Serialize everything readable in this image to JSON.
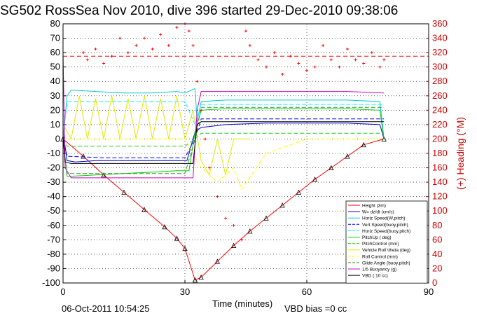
{
  "chart_data": {
    "type": "line",
    "title": "SG502 RossSea Nov 2010, dive 396 started 29-Dec-2010 09:38:06",
    "xlabel": "Time (minutes)",
    "ylabel_right": "(+) Heading (°M)",
    "xlim": [
      0,
      90
    ],
    "ylim": [
      -100,
      80
    ],
    "ylim_right": [
      0,
      360
    ],
    "x_ticks": [
      0,
      30,
      60,
      90
    ],
    "y_ticks": [
      -100,
      -90,
      -80,
      -70,
      -60,
      -50,
      -40,
      -30,
      -20,
      -10,
      0,
      10,
      20,
      30,
      40,
      50,
      60,
      70,
      80
    ],
    "y_right_ticks": [
      0,
      20,
      40,
      60,
      80,
      100,
      120,
      140,
      160,
      180,
      200,
      220,
      240,
      260,
      280,
      300,
      320,
      340,
      360
    ],
    "grid": "dotted",
    "legend_position": "bottom-right",
    "footer_date": "06-Oct-2011 10:54:25",
    "footer_note": "VBD bias =0 cc",
    "colors": {
      "height": "#ff0000",
      "w": "#0000cc",
      "horiz_speed": "#00cccc",
      "vert_speed_buoy": "#0000ff",
      "horiz_speed_buoy": "#00ffff",
      "pitch_up": "#00cc00",
      "pitch_control": "#22cc22",
      "roll": "#e6e600",
      "roll_control": "#ffff00",
      "glide_angle": "#339933",
      "buoyancy": "#cc00cc",
      "vbd": "#000000",
      "heading": "#ff0000"
    },
    "series": [
      {
        "name": "Height (3m)",
        "key": "height",
        "style": "solid-markers",
        "x": [
          0,
          5,
          10,
          15,
          20,
          25,
          28,
          30,
          32.5,
          34,
          38,
          42,
          46,
          50,
          54,
          58,
          62,
          66,
          70,
          74,
          79
        ],
        "y": [
          0,
          -12,
          -25,
          -37,
          -49,
          -61,
          -69,
          -76,
          -98,
          -96,
          -85,
          -74,
          -64,
          -55,
          -46,
          -37,
          -28,
          -20,
          -12,
          -4,
          0
        ]
      },
      {
        "name": "W= dz/dt (cm/s)",
        "key": "w",
        "style": "solid",
        "x": [
          0,
          0.5,
          1,
          3,
          8,
          15,
          22,
          29,
          30.5,
          32.5,
          34,
          40,
          50,
          60,
          70,
          78,
          79
        ],
        "y": [
          5,
          -5,
          -15,
          -16,
          -15,
          -15,
          -15,
          -15,
          -15,
          5,
          8,
          10,
          11,
          11,
          11,
          10,
          0
        ]
      },
      {
        "name": "Horiz Speed(W,pitch)",
        "key": "horiz_speed",
        "style": "solid",
        "x": [
          0,
          1,
          2,
          8,
          15,
          22,
          28,
          30,
          32.5,
          33,
          34,
          40,
          50,
          60,
          70,
          78,
          79
        ],
        "y": [
          0,
          30,
          34,
          33,
          32,
          32,
          33,
          32,
          35,
          12,
          26,
          27,
          27,
          27,
          27,
          26,
          0
        ]
      },
      {
        "name": "Vert Speed(buoy,pitch)",
        "key": "vert_speed_buoy",
        "style": "dashed",
        "x": [
          0,
          1,
          10,
          20,
          30,
          32.5,
          34,
          50,
          70,
          79
        ],
        "y": [
          0,
          -12,
          -13,
          -13,
          -13,
          0,
          14,
          14,
          14,
          14
        ]
      },
      {
        "name": "Horiz Speed(buoy,pitch)",
        "key": "horiz_speed_buoy",
        "style": "dashed",
        "x": [
          0,
          1,
          10,
          20,
          30,
          32.5,
          34,
          50,
          70,
          79
        ],
        "y": [
          0,
          26,
          26,
          26,
          26,
          10,
          24,
          24,
          24,
          24
        ]
      },
      {
        "name": "PitchUp ( deg)",
        "key": "pitch_up",
        "style": "solid",
        "x": [
          0,
          1,
          8,
          15,
          22,
          28,
          31,
          32.5,
          34,
          40,
          50,
          60,
          70,
          78,
          79
        ],
        "y": [
          0,
          -26,
          -25,
          -24,
          -23,
          -22,
          -22,
          5,
          20,
          21,
          21,
          21,
          21,
          20,
          0
        ]
      },
      {
        "name": "PitchControl (mm)",
        "key": "pitch_control",
        "style": "dashed",
        "x": [
          0,
          1,
          10,
          20,
          30,
          32.5,
          34,
          50,
          70,
          79
        ],
        "y": [
          0,
          -5,
          -5,
          -5,
          -5,
          0,
          4,
          4,
          4,
          4
        ]
      },
      {
        "name": "Vehicle Roll \\theta (deg)",
        "key": "roll",
        "style": "solid",
        "x": [
          0,
          2,
          4,
          6,
          8,
          10,
          12,
          14,
          16,
          18,
          20,
          22,
          24,
          26,
          28,
          30,
          32,
          34,
          36,
          38,
          40,
          42,
          44,
          46
        ],
        "y": [
          10,
          0,
          30,
          0,
          28,
          0,
          30,
          0,
          28,
          0,
          30,
          0,
          28,
          0,
          30,
          0,
          20,
          -15,
          -25,
          0,
          -25,
          0,
          0,
          0
        ]
      },
      {
        "name": "Roll Control (mm)",
        "key": "roll_control",
        "style": "dashed",
        "x": [
          0,
          5,
          10,
          20,
          30,
          34,
          38,
          42,
          44,
          50,
          60,
          70,
          79
        ],
        "y": [
          0,
          0,
          0,
          0,
          0,
          -20,
          -30,
          -20,
          -35,
          -10,
          0,
          0,
          0
        ]
      },
      {
        "name": "Glide Angle (buoy,pitch)",
        "key": "glide_angle",
        "style": "dashed",
        "x": [
          0,
          1,
          10,
          20,
          30,
          32.5,
          34,
          50,
          70,
          79
        ],
        "y": [
          0,
          -24,
          -24,
          -24,
          -24,
          0,
          22,
          22,
          22,
          22
        ]
      },
      {
        "name": "1/5 Buoyancy (g)",
        "key": "buoyancy",
        "style": "solid",
        "x": [
          0,
          0.5,
          2,
          10,
          20,
          30,
          32,
          33,
          34,
          40,
          50,
          60,
          70,
          79
        ],
        "y": [
          60,
          -20,
          -27,
          -27,
          -27,
          -27,
          -27,
          20,
          33,
          33,
          33,
          33,
          33,
          32
        ]
      },
      {
        "name": "VBD ( 10 cc)",
        "key": "vbd",
        "style": "solid",
        "x": [
          0,
          0.5,
          2,
          10,
          20,
          30,
          32,
          33,
          34,
          40,
          50,
          60,
          70,
          79
        ],
        "y": [
          2,
          -16,
          -17,
          -17,
          -17,
          -17,
          -17,
          10,
          12,
          12,
          12,
          12,
          12,
          12
        ]
      },
      {
        "name": "Heading",
        "key": "heading",
        "style": "markers",
        "axis": "right",
        "x": [
          5,
          6,
          8,
          10,
          12,
          14,
          16,
          18,
          20,
          22,
          24,
          26,
          28,
          30,
          31,
          32,
          33,
          34,
          35,
          36,
          38,
          40,
          42,
          44,
          45,
          46,
          48,
          50,
          52,
          54,
          56,
          58,
          60,
          62,
          64,
          66,
          68,
          70,
          72,
          74,
          76,
          78,
          79
        ],
        "y": [
          320,
          310,
          325,
          305,
          315,
          340,
          320,
          330,
          340,
          325,
          345,
          330,
          355,
          360,
          350,
          330,
          280,
          240,
          200,
          160,
          120,
          90,
          80,
          60,
          350,
          330,
          310,
          300,
          320,
          290,
          315,
          305,
          295,
          300,
          330,
          310,
          300,
          325,
          310,
          305,
          320,
          300,
          310
        ]
      }
    ],
    "heading_reference": 315
  }
}
